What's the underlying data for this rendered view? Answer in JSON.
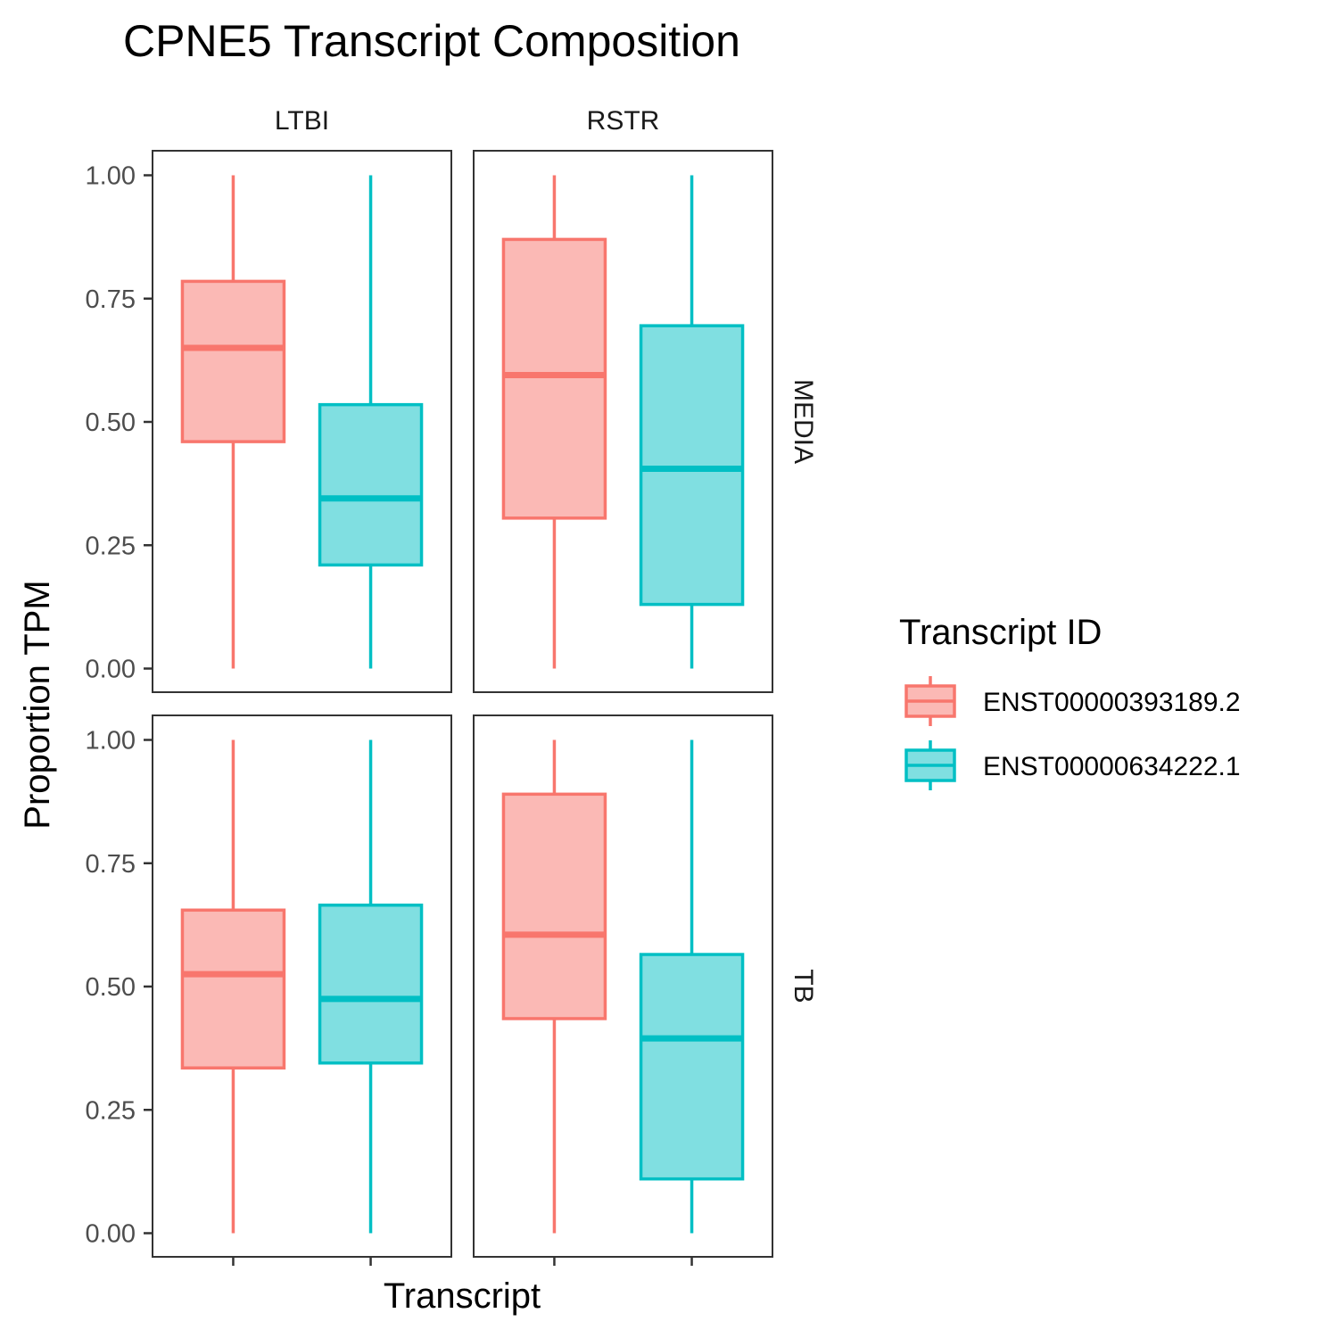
{
  "chart_data": {
    "type": "boxplot",
    "title": "CPNE5 Transcript Composition",
    "xlabel": "Transcript",
    "ylabel": "Proportion TPM",
    "ylim": [
      0,
      1
    ],
    "yticks": [
      "0.00",
      "0.25",
      "0.50",
      "0.75",
      "1.00"
    ],
    "yticks_values": [
      0,
      0.25,
      0.5,
      0.75,
      1.0
    ],
    "columns": [
      "LTBI",
      "RSTR"
    ],
    "rows": [
      "MEDIA",
      "TB"
    ],
    "grid": false,
    "legend": {
      "title": "Transcript ID",
      "position": "right",
      "entries": [
        "ENST00000393189.2",
        "ENST00000634222.1"
      ]
    },
    "colors": {
      "ENST00000393189.2": {
        "line": "#F8766D",
        "fill": "#FBB9B5"
      },
      "ENST00000634222.1": {
        "line": "#00BFC4",
        "fill": "#80DFE1"
      }
    },
    "panels": [
      {
        "column": "LTBI",
        "row": "MEDIA",
        "boxes": [
          {
            "transcript": "ENST00000393189.2",
            "min": 0.0,
            "q1": 0.46,
            "median": 0.65,
            "q3": 0.785,
            "max": 1.0
          },
          {
            "transcript": "ENST00000634222.1",
            "min": 0.0,
            "q1": 0.21,
            "median": 0.345,
            "q3": 0.535,
            "max": 1.0
          }
        ]
      },
      {
        "column": "RSTR",
        "row": "MEDIA",
        "boxes": [
          {
            "transcript": "ENST00000393189.2",
            "min": 0.0,
            "q1": 0.305,
            "median": 0.595,
            "q3": 0.87,
            "max": 1.0
          },
          {
            "transcript": "ENST00000634222.1",
            "min": 0.0,
            "q1": 0.13,
            "median": 0.405,
            "q3": 0.695,
            "max": 1.0
          }
        ]
      },
      {
        "column": "LTBI",
        "row": "TB",
        "boxes": [
          {
            "transcript": "ENST00000393189.2",
            "min": 0.0,
            "q1": 0.335,
            "median": 0.525,
            "q3": 0.655,
            "max": 1.0
          },
          {
            "transcript": "ENST00000634222.1",
            "min": 0.0,
            "q1": 0.345,
            "median": 0.475,
            "q3": 0.665,
            "max": 1.0
          }
        ]
      },
      {
        "column": "RSTR",
        "row": "TB",
        "boxes": [
          {
            "transcript": "ENST00000393189.2",
            "min": 0.0,
            "q1": 0.435,
            "median": 0.605,
            "q3": 0.89,
            "max": 1.0
          },
          {
            "transcript": "ENST00000634222.1",
            "min": 0.0,
            "q1": 0.11,
            "median": 0.395,
            "q3": 0.565,
            "max": 1.0
          }
        ]
      }
    ]
  }
}
